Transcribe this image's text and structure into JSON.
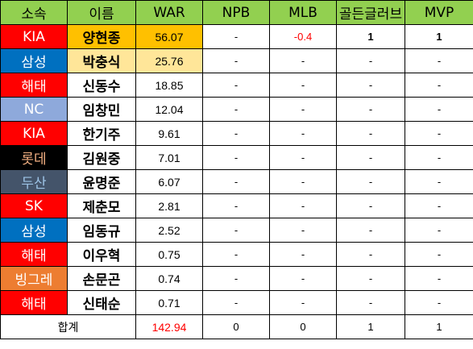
{
  "headers": [
    "소속",
    "이름",
    "WAR",
    "NPB",
    "MLB",
    "골든글러브",
    "MVP"
  ],
  "rows": [
    {
      "team": "KIA",
      "team_bg": "#ff0000",
      "team_fg": "#ffffff",
      "name": "양현종",
      "name_bg": "#ffc000",
      "war": "56.07",
      "war_bg": "#ffc000",
      "npb": "-",
      "mlb": "-0.4",
      "gg": "1",
      "mvp": "1"
    },
    {
      "team": "삼성",
      "team_bg": "#0070c0",
      "team_fg": "#ffffff",
      "name": "박충식",
      "name_bg": "#ffe699",
      "war": "25.76",
      "war_bg": "#ffe699",
      "npb": "-",
      "mlb": "-",
      "gg": "-",
      "mvp": "-"
    },
    {
      "team": "해태",
      "team_bg": "#ff0000",
      "team_fg": "#ffffff",
      "name": "신동수",
      "name_bg": "#ffffff",
      "war": "18.85",
      "war_bg": "#ffffff",
      "npb": "-",
      "mlb": "-",
      "gg": "-",
      "mvp": "-"
    },
    {
      "team": "NC",
      "team_bg": "#8ea9db",
      "team_fg": "#ffffff",
      "name": "임창민",
      "name_bg": "#ffffff",
      "war": "12.04",
      "war_bg": "#ffffff",
      "npb": "-",
      "mlb": "-",
      "gg": "-",
      "mvp": "-"
    },
    {
      "team": "KIA",
      "team_bg": "#ff0000",
      "team_fg": "#ffffff",
      "name": "한기주",
      "name_bg": "#ffffff",
      "war": "9.61",
      "war_bg": "#ffffff",
      "npb": "-",
      "mlb": "-",
      "gg": "-",
      "mvp": "-"
    },
    {
      "team": "롯데",
      "team_bg": "#000000",
      "team_fg": "#f4b183",
      "name": "김원중",
      "name_bg": "#ffffff",
      "war": "7.01",
      "war_bg": "#ffffff",
      "npb": "-",
      "mlb": "-",
      "gg": "-",
      "mvp": "-"
    },
    {
      "team": "두산",
      "team_bg": "#44546a",
      "team_fg": "#9dc3e6",
      "name": "윤명준",
      "name_bg": "#ffffff",
      "war": "6.07",
      "war_bg": "#ffffff",
      "npb": "-",
      "mlb": "-",
      "gg": "-",
      "mvp": "-"
    },
    {
      "team": "SK",
      "team_bg": "#ff0000",
      "team_fg": "#ffffff",
      "name": "제춘모",
      "name_bg": "#ffffff",
      "war": "2.81",
      "war_bg": "#ffffff",
      "npb": "-",
      "mlb": "-",
      "gg": "-",
      "mvp": "-"
    },
    {
      "team": "삼성",
      "team_bg": "#0070c0",
      "team_fg": "#ffffff",
      "name": "임동규",
      "name_bg": "#ffffff",
      "war": "2.52",
      "war_bg": "#ffffff",
      "npb": "-",
      "mlb": "-",
      "gg": "-",
      "mvp": "-"
    },
    {
      "team": "해태",
      "team_bg": "#ff0000",
      "team_fg": "#ffffff",
      "name": "이우혁",
      "name_bg": "#ffffff",
      "war": "0.75",
      "war_bg": "#ffffff",
      "npb": "-",
      "mlb": "-",
      "gg": "-",
      "mvp": "-"
    },
    {
      "team": "빙그레",
      "team_bg": "#ed7d31",
      "team_fg": "#ffffff",
      "name": "손문곤",
      "name_bg": "#ffffff",
      "war": "0.74",
      "war_bg": "#ffffff",
      "npb": "-",
      "mlb": "-",
      "gg": "-",
      "mvp": "-"
    },
    {
      "team": "해태",
      "team_bg": "#ff0000",
      "team_fg": "#ffffff",
      "name": "신태순",
      "name_bg": "#ffffff",
      "war": "0.71",
      "war_bg": "#ffffff",
      "npb": "-",
      "mlb": "-",
      "gg": "-",
      "mvp": "-"
    }
  ],
  "total": {
    "label": "합계",
    "war": "142.94",
    "npb": "0",
    "mlb": "0",
    "gg": "1",
    "mvp": "1"
  }
}
